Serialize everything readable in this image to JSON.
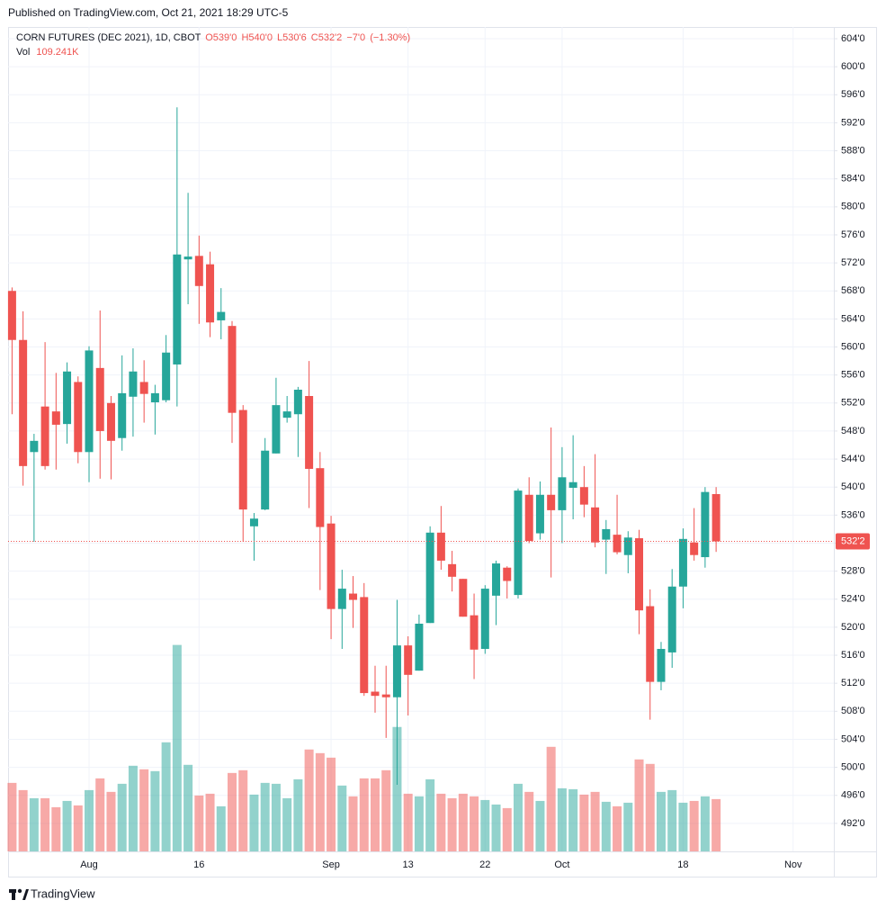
{
  "published": "Published on TradingView.com, Oct 21, 2021 18:29 UTC-5",
  "footer": "TradingView",
  "chart_data": {
    "type": "candlestick",
    "header": {
      "symbol": "CORN FUTURES (DEC 2021), 1D, CBOT",
      "open": {
        "value": 539,
        "label": "O539'0"
      },
      "high": {
        "value": 540,
        "label": "H540'0"
      },
      "low": {
        "value": 530.75,
        "label": "L530'6"
      },
      "close": {
        "value": 532.25,
        "label": "C532'2"
      },
      "change": {
        "value": -7,
        "label": "−7'0"
      },
      "change_pct": {
        "value": -1.3,
        "label": "(−1.30%)"
      },
      "volume_name": "Vol",
      "volume": {
        "value": 109.241,
        "label": "109.241K"
      }
    },
    "up_color": "#26a69a",
    "down_color": "#ef5350",
    "categories": [
      null,
      null,
      null,
      null,
      null,
      null,
      null,
      "Aug",
      null,
      null,
      null,
      null,
      null,
      null,
      null,
      null,
      null,
      "16",
      null,
      null,
      null,
      null,
      null,
      null,
      null,
      null,
      null,
      null,
      null,
      "Sep",
      null,
      null,
      null,
      null,
      null,
      null,
      "13",
      null,
      null,
      null,
      null,
      null,
      null,
      "22",
      null,
      null,
      null,
      null,
      null,
      null,
      "Oct",
      null,
      null,
      null,
      null,
      null,
      null,
      null,
      null,
      null,
      null,
      "18",
      null,
      null,
      null,
      null,
      null,
      null,
      null,
      null,
      null,
      "Nov"
    ],
    "open": [
      568,
      561,
      545,
      551.5,
      550.8,
      549,
      555,
      545,
      557,
      552,
      547,
      552.9,
      555,
      552.1,
      552.4,
      557.5,
      572.5,
      573,
      571.8,
      563.8,
      563,
      551,
      534.4,
      536.8,
      544.8,
      549.9,
      550.4,
      553,
      542.7,
      534.8,
      522.6,
      524.8,
      524.3,
      510.8,
      510.4,
      510,
      517.4,
      513.8,
      520.6,
      533.5,
      529,
      526.9,
      521.7,
      516.9,
      524.5,
      528.5,
      524.6,
      538.9,
      533.4,
      538.9,
      536.7,
      539.9,
      540,
      537.1,
      532.5,
      533.2,
      530.3,
      532.7,
      523,
      512.2,
      516.4,
      525.8,
      532.1,
      530,
      539,
      null,
      null,
      null,
      null,
      null,
      null,
      null
    ],
    "high": [
      568.5,
      565.1,
      547.6,
      560.7,
      556.3,
      557.8,
      555.8,
      560.1,
      565.2,
      553,
      558.8,
      559.8,
      558.1,
      554.6,
      561.7,
      594.2,
      582,
      575.9,
      573.6,
      568.4,
      563.7,
      551.7,
      536.3,
      547,
      555.6,
      553,
      554.3,
      558,
      545,
      535.9,
      528.2,
      527.3,
      526.3,
      514.5,
      514.5,
      523.9,
      518.7,
      521.8,
      534.4,
      537.3,
      530.9,
      526.9,
      524.8,
      526,
      529.5,
      528.7,
      539.8,
      541.4,
      540.8,
      548.5,
      545.7,
      547.4,
      543,
      544.7,
      535.3,
      538.9,
      533.7,
      533.9,
      525.4,
      517.9,
      528.3,
      534.1,
      537,
      540,
      540,
      null,
      null,
      null,
      null,
      null,
      null,
      null
    ],
    "low": [
      550.4,
      540.2,
      532.2,
      542.5,
      542.5,
      546.2,
      543.4,
      540.7,
      541.2,
      541.1,
      545.2,
      547.2,
      549.2,
      547.5,
      552.1,
      551.5,
      566.1,
      563.3,
      561.4,
      561.1,
      546.3,
      532.2,
      529.5,
      536.7,
      544.8,
      549.2,
      544.3,
      537,
      525.3,
      518.3,
      516.9,
      519.9,
      510.2,
      507.8,
      504.2,
      497.5,
      507.4,
      513.8,
      520.6,
      528.2,
      525.1,
      521.5,
      512.6,
      516.2,
      520.3,
      524.1,
      524.1,
      532,
      532.5,
      527.1,
      532,
      535.4,
      535.7,
      531.4,
      527.6,
      530.4,
      527.7,
      519,
      506.8,
      511,
      514.2,
      522.7,
      529.5,
      528.5,
      530.75,
      null,
      null,
      null,
      null,
      null,
      null,
      null
    ],
    "close": [
      561,
      543,
      546.6,
      543,
      548.9,
      556.5,
      545,
      559.5,
      548,
      546.6,
      553.4,
      556.5,
      553.3,
      553.4,
      559.2,
      573.2,
      572.9,
      568.7,
      563.5,
      565,
      550.6,
      536.8,
      535.5,
      545.2,
      551.7,
      550.8,
      553.9,
      542.6,
      534.3,
      522.6,
      525.5,
      523.9,
      510.6,
      510.2,
      510,
      517.4,
      513.2,
      520.5,
      533.5,
      529.5,
      527.2,
      521.5,
      516.8,
      525.5,
      529.1,
      526.6,
      539.5,
      532.3,
      538.9,
      536.7,
      541.4,
      540.7,
      537.5,
      532.1,
      534,
      530.7,
      532.8,
      522.4,
      512.2,
      516.9,
      525.8,
      532.6,
      530.3,
      539.3,
      532.25,
      null,
      null,
      null,
      null,
      null,
      null,
      null
    ],
    "volume": [
      143.1,
      128,
      111.1,
      111.1,
      92.3,
      105.4,
      96,
      128,
      152.5,
      124.3,
      141.2,
      178.9,
      171.4,
      167.6,
      227.8,
      431.2,
      180.8,
      116.7,
      120.5,
      94.2,
      163.8,
      169.5,
      118.6,
      143.1,
      141.2,
      111.1,
      150.6,
      212.8,
      205.2,
      195.8,
      137.5,
      114.9,
      152.5,
      152.5,
      169.5,
      259.9,
      120.5,
      114.9,
      150.6,
      120.5,
      111.1,
      120.5,
      114.9,
      107.3,
      97.9,
      90.4,
      141.2,
      124.3,
      105.4,
      218.4,
      131.8,
      129.9,
      118.6,
      124.3,
      103.6,
      94.2,
      101.7,
      192.1,
      182.7,
      124.3,
      128,
      101.7,
      105.4,
      114.9,
      109.241,
      null,
      null,
      null,
      null,
      null,
      null,
      null
    ],
    "volume_ylim": [
      0,
      500
    ],
    "ylim": [
      488,
      605.67
    ],
    "yticks": [
      {
        "value": 604,
        "label": "604'0"
      },
      {
        "value": 600,
        "label": "600'0"
      },
      {
        "value": 596,
        "label": "596'0"
      },
      {
        "value": 592,
        "label": "592'0"
      },
      {
        "value": 588,
        "label": "588'0"
      },
      {
        "value": 584,
        "label": "584'0"
      },
      {
        "value": 580,
        "label": "580'0"
      },
      {
        "value": 576,
        "label": "576'0"
      },
      {
        "value": 572,
        "label": "572'0"
      },
      {
        "value": 568,
        "label": "568'0"
      },
      {
        "value": 564,
        "label": "564'0"
      },
      {
        "value": 560,
        "label": "560'0"
      },
      {
        "value": 556,
        "label": "556'0"
      },
      {
        "value": 552,
        "label": "552'0"
      },
      {
        "value": 548,
        "label": "548'0"
      },
      {
        "value": 544,
        "label": "544'0"
      },
      {
        "value": 540,
        "label": "540'0"
      },
      {
        "value": 536,
        "label": "536'0"
      },
      {
        "value": 532,
        "label": "532'0"
      },
      {
        "value": 528,
        "label": "528'0"
      },
      {
        "value": 524,
        "label": "524'0"
      },
      {
        "value": 520,
        "label": "520'0"
      },
      {
        "value": 516,
        "label": "516'0"
      },
      {
        "value": 512,
        "label": "512'0"
      },
      {
        "value": 508,
        "label": "508'0"
      },
      {
        "value": 504,
        "label": "504'0"
      },
      {
        "value": 500,
        "label": "500'0"
      },
      {
        "value": 496,
        "label": "496'0"
      },
      {
        "value": 492,
        "label": "492'0"
      }
    ],
    "last_price": {
      "value": 532.25,
      "label": "532'2"
    },
    "grid": true
  }
}
